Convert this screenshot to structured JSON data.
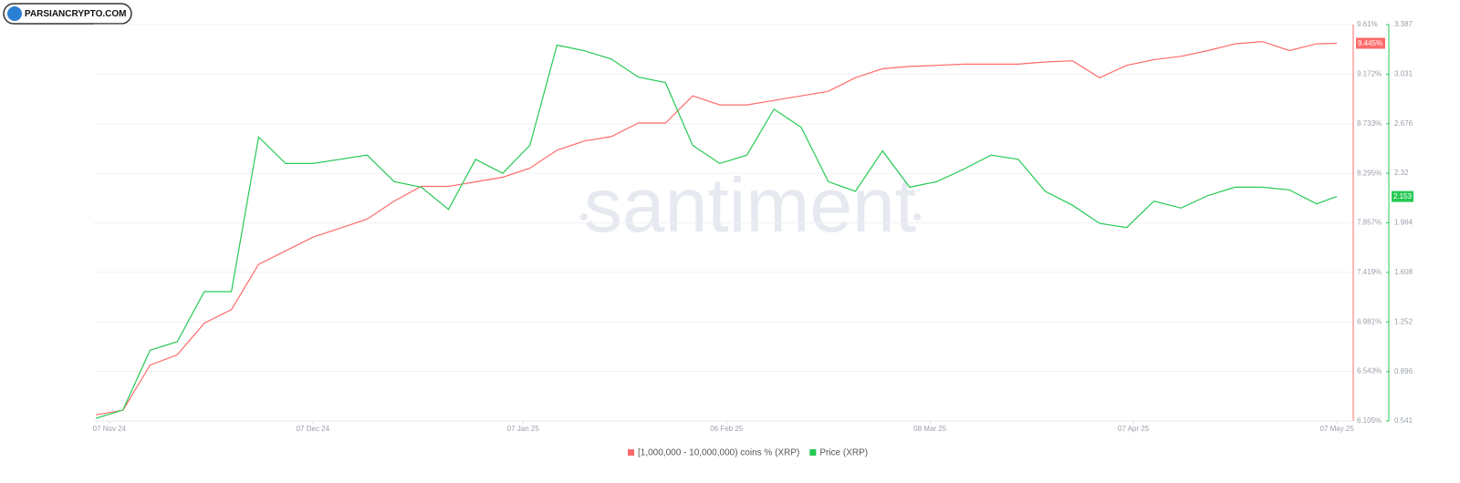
{
  "logo_text": "PARSIANCRYPTO.COM",
  "chart_data": {
    "type": "line",
    "watermark": "santiment",
    "x": [
      "2024-11-05",
      "2024-11-09",
      "2024-11-13",
      "2024-11-17",
      "2024-11-21",
      "2024-11-25",
      "2024-11-29",
      "2024-12-03",
      "2024-12-07",
      "2024-12-11",
      "2024-12-15",
      "2024-12-19",
      "2024-12-23",
      "2024-12-27",
      "2024-12-31",
      "2025-01-04",
      "2025-01-08",
      "2025-01-12",
      "2025-01-16",
      "2025-01-20",
      "2025-01-24",
      "2025-01-28",
      "2025-02-01",
      "2025-02-05",
      "2025-02-09",
      "2025-02-13",
      "2025-02-17",
      "2025-02-21",
      "2025-02-25",
      "2025-03-01",
      "2025-03-05",
      "2025-03-09",
      "2025-03-13",
      "2025-03-17",
      "2025-03-21",
      "2025-03-25",
      "2025-03-29",
      "2025-04-02",
      "2025-04-06",
      "2025-04-10",
      "2025-04-14",
      "2025-04-18",
      "2025-04-22",
      "2025-04-26",
      "2025-04-30",
      "2025-05-04",
      "2025-05-07"
    ],
    "xlim": [
      "2024-11-05",
      "2025-05-09"
    ],
    "xticks": [
      {
        "value": "2024-11-07",
        "label": "07 Nov 24"
      },
      {
        "value": "2024-12-07",
        "label": "07 Dec 24"
      },
      {
        "value": "2025-01-07",
        "label": "07 Jan 25"
      },
      {
        "value": "2025-02-06",
        "label": "06 Feb 25"
      },
      {
        "value": "2025-03-08",
        "label": "08 Mar 25"
      },
      {
        "value": "2025-04-07",
        "label": "07 Apr 25"
      },
      {
        "value": "2025-05-07",
        "label": "07 May 25"
      }
    ],
    "ylim": [
      6.105,
      9.61
    ],
    "yticks": [
      {
        "value": 6.105,
        "label": "6.105%"
      },
      {
        "value": 6.543,
        "label": "6.543%"
      },
      {
        "value": 6.981,
        "label": "6.981%"
      },
      {
        "value": 7.419,
        "label": "7.419%"
      },
      {
        "value": 7.857,
        "label": "7.857%"
      },
      {
        "value": 8.295,
        "label": "8.295%"
      },
      {
        "value": 8.733,
        "label": "8.733%"
      },
      {
        "value": 9.172,
        "label": "9.172%"
      },
      {
        "value": 9.61,
        "label": "9.61%"
      }
    ],
    "y2lim": [
      0.541,
      3.387
    ],
    "y2ticks": [
      0.541,
      0.896,
      1.252,
      1.608,
      1.964,
      2.32,
      2.676,
      3.031,
      3.387
    ],
    "grid": true,
    "series": [
      {
        "name": "[1,000,000 - 10,000,000) coins % (XRP)",
        "color": "#ff6b6b",
        "values": [
          6.16,
          6.2,
          6.6,
          6.69,
          6.97,
          7.09,
          7.49,
          7.61,
          7.73,
          7.81,
          7.89,
          8.05,
          8.18,
          8.18,
          8.22,
          8.26,
          8.34,
          8.5,
          8.58,
          8.62,
          8.74,
          8.74,
          8.98,
          8.9,
          8.9,
          8.94,
          8.98,
          9.02,
          9.14,
          9.22,
          9.24,
          9.25,
          9.26,
          9.26,
          9.26,
          9.28,
          9.29,
          9.14,
          9.25,
          9.3,
          9.33,
          9.38,
          9.44,
          9.46,
          9.38,
          9.44,
          9.445
        ],
        "value_labels": [
          null,
          null,
          null,
          null,
          null,
          null,
          null,
          null,
          null,
          null,
          null,
          null,
          null,
          null,
          null,
          null,
          null,
          null,
          null,
          null,
          null,
          null,
          null,
          null,
          null,
          null,
          null,
          null,
          null,
          null,
          null,
          null,
          null,
          null,
          null,
          null,
          null,
          null,
          null,
          null,
          null,
          null,
          null,
          null,
          null,
          null,
          "9.445%"
        ]
      },
      {
        "name": "Price (XRP)",
        "color": "#26c953",
        "axis": "y2",
        "values": [
          0.56,
          0.62,
          1.05,
          1.11,
          1.47,
          1.47,
          2.58,
          2.39,
          2.39,
          2.42,
          2.45,
          2.26,
          2.22,
          2.06,
          2.42,
          2.32,
          2.52,
          3.24,
          3.2,
          3.14,
          3.01,
          2.97,
          2.52,
          2.39,
          2.45,
          2.78,
          2.65,
          2.26,
          2.19,
          2.48,
          2.22,
          2.26,
          2.35,
          2.45,
          2.42,
          2.19,
          2.09,
          1.96,
          1.93,
          2.12,
          2.07,
          2.16,
          2.22,
          2.22,
          2.2,
          2.1,
          2.153
        ],
        "value_labels": [
          null,
          null,
          null,
          null,
          null,
          null,
          null,
          null,
          null,
          null,
          null,
          null,
          null,
          null,
          null,
          null,
          null,
          null,
          null,
          null,
          null,
          null,
          null,
          null,
          null,
          null,
          null,
          null,
          null,
          null,
          null,
          null,
          null,
          null,
          null,
          null,
          null,
          null,
          null,
          null,
          null,
          null,
          null,
          null,
          null,
          null,
          "2.153"
        ]
      }
    ]
  }
}
